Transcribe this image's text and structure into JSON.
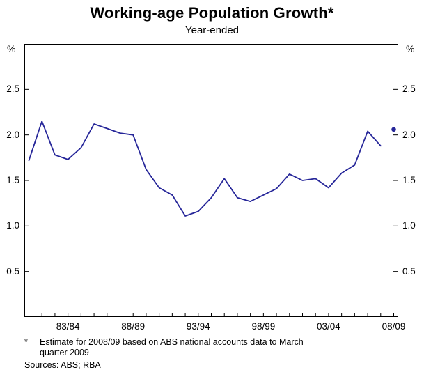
{
  "title": "Working-age Population Growth*",
  "subtitle": "Year-ended",
  "axes": {
    "unit": "%"
  },
  "footnote": {
    "marker": "*",
    "line1": "Estimate for 2008/09 based on ABS national accounts data to March",
    "line2": "quarter 2009"
  },
  "sources": "Sources: ABS; RBA",
  "chart_data": {
    "type": "line",
    "title": "Working-age Population Growth*",
    "subtitle": "Year-ended",
    "ylabel": "%",
    "ylim": [
      0,
      3.0
    ],
    "y_ticks": [
      0.5,
      1.0,
      1.5,
      2.0,
      2.5
    ],
    "x_tick_labels": [
      "83/84",
      "88/89",
      "93/94",
      "98/99",
      "03/04",
      "08/09"
    ],
    "years": [
      "80/81",
      "81/82",
      "82/83",
      "83/84",
      "84/85",
      "85/86",
      "86/87",
      "87/88",
      "88/89",
      "89/90",
      "90/91",
      "91/92",
      "92/93",
      "93/94",
      "94/95",
      "95/96",
      "96/97",
      "97/98",
      "98/99",
      "99/00",
      "00/01",
      "01/02",
      "02/03",
      "03/04",
      "04/05",
      "05/06",
      "06/07",
      "07/08",
      "08/09"
    ],
    "values": [
      1.72,
      2.15,
      1.78,
      1.73,
      1.86,
      2.12,
      2.07,
      2.02,
      2.0,
      1.62,
      1.42,
      1.34,
      1.11,
      1.16,
      1.31,
      1.52,
      1.31,
      1.27,
      1.34,
      1.41,
      1.57,
      1.5,
      1.52,
      1.42,
      1.58,
      1.67,
      2.04,
      1.88
    ],
    "estimate": {
      "year": "08/09",
      "value": 2.06
    },
    "line_color": "#262699",
    "grid": false,
    "legend": "none"
  }
}
